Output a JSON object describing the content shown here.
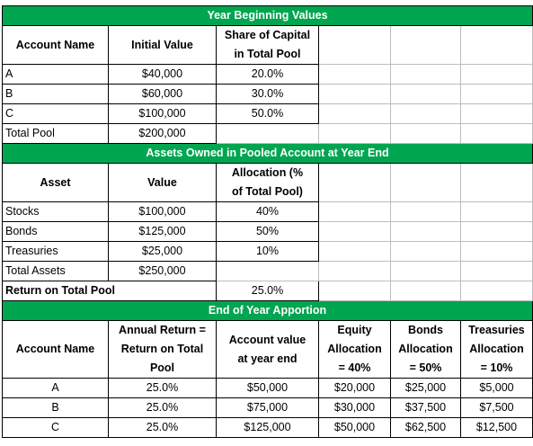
{
  "sections": [
    {
      "title": "Year Beginning Values",
      "header": [
        [
          "Account Name"
        ],
        [
          "Initial Value"
        ],
        [
          "Share of Capital",
          "in Total Pool"
        ]
      ],
      "rows": [
        [
          "A",
          "$40,000",
          "20.0%"
        ],
        [
          "B",
          "$60,000",
          "30.0%"
        ],
        [
          "C",
          "$100,000",
          "50.0%"
        ],
        [
          "Total Pool",
          "$200,000"
        ]
      ]
    },
    {
      "title": "Assets Owned in Pooled Account at Year End",
      "header": [
        [
          "Asset"
        ],
        [
          "Value"
        ],
        [
          "Allocation (%",
          "of Total Pool)"
        ]
      ],
      "rows": [
        [
          "Stocks",
          "$100,000",
          "40%"
        ],
        [
          "Bonds",
          "$125,000",
          "50%"
        ],
        [
          "Treasuries",
          "$25,000",
          "10%"
        ],
        [
          "Total Assets",
          "$250,000"
        ]
      ],
      "summary": {
        "label": "Return on Total Pool",
        "value": "25.0%"
      }
    },
    {
      "title": "End of Year Apportion",
      "header": [
        [
          "Account Name"
        ],
        [
          "Annual Return =",
          "Return on Total",
          "Pool"
        ],
        [
          "Account value",
          "at year end"
        ],
        [
          "Equity",
          "Allocation",
          "= 40%"
        ],
        [
          "Bonds",
          "Allocation",
          "= 50%"
        ],
        [
          "Treasuries",
          "Allocation",
          "= 10%"
        ]
      ],
      "rows": [
        [
          "A",
          "25.0%",
          "$50,000",
          "$20,000",
          "$25,000",
          "$5,000"
        ],
        [
          "B",
          "25.0%",
          "$75,000",
          "$30,000",
          "$37,500",
          "$7,500"
        ],
        [
          "C",
          "25.0%",
          "$125,000",
          "$50,000",
          "$62,500",
          "$12,500"
        ]
      ]
    }
  ]
}
